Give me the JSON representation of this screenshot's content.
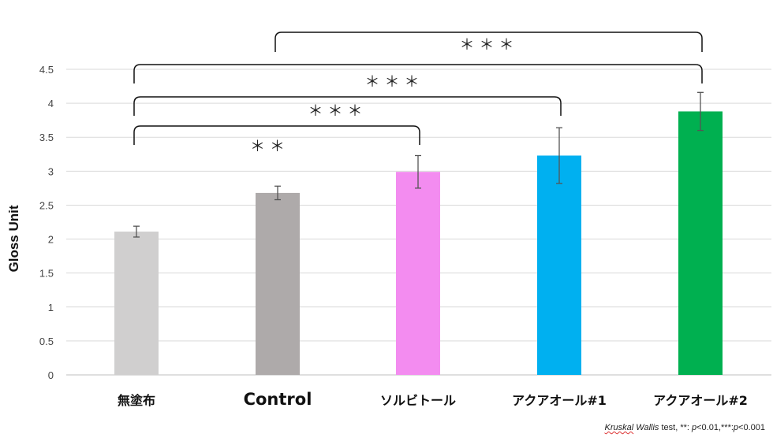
{
  "chart_data": {
    "type": "bar",
    "ylabel": "Gloss  Unit",
    "ylim": [
      0,
      4.5
    ],
    "yticks": [
      "0",
      "0.5",
      "1",
      "1.5",
      "2",
      "2.5",
      "3",
      "3.5",
      "4",
      "4.5"
    ],
    "grid": true,
    "categories": [
      "無塗布",
      "Control",
      "ソルビトール",
      "アクアオール#1",
      "アクアオール#2"
    ],
    "values": [
      2.11,
      2.68,
      2.99,
      3.23,
      3.88
    ],
    "errors": [
      0.08,
      0.1,
      0.24,
      0.41,
      0.28
    ],
    "colors": [
      "#d0cfcf",
      "#aeaaaa",
      "#f38cf0",
      "#00b0f0",
      "#00b050"
    ],
    "significance": [
      {
        "from": 0,
        "to": 2,
        "label": "＊＊"
      },
      {
        "from": 0,
        "to": 3,
        "label": "＊＊＊"
      },
      {
        "from": 0,
        "to": 4,
        "label": "＊＊＊"
      },
      {
        "from": 1,
        "to": 4,
        "label": "＊＊＊"
      }
    ]
  },
  "footnote": {
    "test_a": "Kruskal",
    "test_b": "Wallis",
    "test_c": " test, **: ",
    "p1": "p",
    "c1": "<0.01,***:",
    "p2": "p",
    "c2": "<0.001"
  }
}
